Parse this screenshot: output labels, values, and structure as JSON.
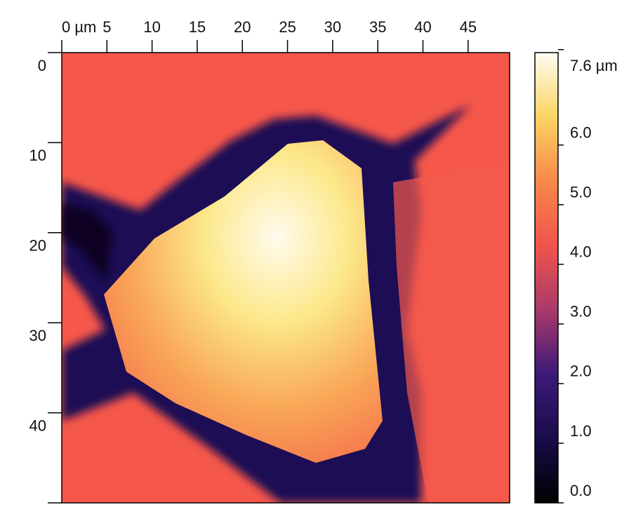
{
  "chart_data": {
    "type": "image",
    "xlim": [
      0,
      49.6
    ],
    "ylim": [
      0,
      50
    ],
    "xticks": [
      {
        "value": 0,
        "label": "0 µm"
      },
      5,
      10,
      15,
      20,
      25,
      30,
      35,
      40,
      45
    ],
    "yticks": [
      0,
      10,
      20,
      30,
      40
    ],
    "clim": [
      0,
      7.55
    ],
    "cticks": [
      {
        "value": 0,
        "label": "0.0"
      },
      {
        "value": 1,
        "label": "1.0"
      },
      {
        "value": 2,
        "label": "2.0"
      },
      {
        "value": 3,
        "label": "3.0"
      },
      {
        "value": 4,
        "label": "4.0"
      },
      {
        "value": 5,
        "label": "5.0"
      },
      {
        "value": 6,
        "label": "6.0"
      },
      {
        "value": 7.6,
        "label": "7.6 µm"
      }
    ],
    "colormap": [
      "#000000",
      "#1a0c4a",
      "#3c1a78",
      "#a93a6a",
      "#f0544c",
      "#f8884a",
      "#fbd462",
      "#fffdf2"
    ]
  }
}
